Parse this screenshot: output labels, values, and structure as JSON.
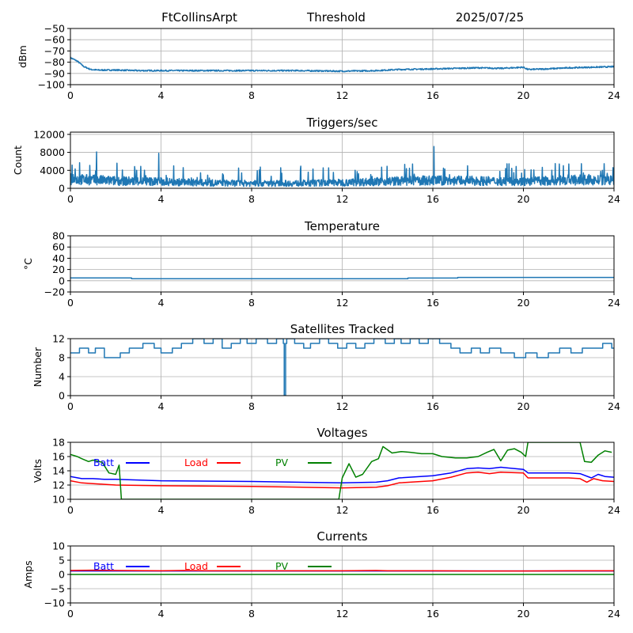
{
  "header": {
    "station": "FtCollinsArpt",
    "plot_name": "Threshold",
    "date": "2025/07/25"
  },
  "colors": {
    "data": "#1f77b4",
    "batt": "#0000ff",
    "load": "#ff0000",
    "pv": "#008000",
    "grid": "#b0b0b0"
  },
  "x_ticks": [
    0,
    4,
    8,
    12,
    16,
    20,
    24
  ],
  "chart_data": [
    {
      "type": "line",
      "title": "",
      "ylabel": "dBm",
      "xlim": [
        0,
        24
      ],
      "ylim": [
        -100,
        -50
      ],
      "yticks": [
        -100,
        -90,
        -80,
        -70,
        -60,
        -50
      ],
      "grid": true,
      "series": [
        {
          "color": "#1f77b4",
          "style": "noisy",
          "x": [
            0,
            0.3,
            0.6,
            0.9,
            1.2,
            2,
            3,
            4,
            6,
            8,
            10,
            12,
            13.5,
            14.5,
            16,
            17,
            18,
            19,
            20,
            20.2,
            21,
            22,
            23,
            24
          ],
          "y": [
            -76,
            -79,
            -84,
            -86.5,
            -87,
            -87,
            -87.5,
            -87.5,
            -87.5,
            -87.5,
            -87.5,
            -88,
            -87.5,
            -86.5,
            -86,
            -85.5,
            -85,
            -85.5,
            -84.5,
            -86.5,
            -86,
            -85,
            -84.5,
            -84
          ],
          "noise": 0.6
        }
      ]
    },
    {
      "type": "line",
      "title": "Triggers/sec",
      "ylabel": "Count",
      "xlim": [
        0,
        24
      ],
      "ylim": [
        0,
        12500
      ],
      "yticks": [
        0,
        4000,
        8000,
        12000
      ],
      "grid": true,
      "series": [
        {
          "color": "#1f77b4",
          "style": "spiky",
          "x": [
            0,
            2,
            4,
            6,
            8,
            10,
            12,
            14,
            16,
            18,
            20,
            22,
            24
          ],
          "y": [
            2200,
            1800,
            1600,
            1300,
            1200,
            1200,
            1400,
            1700,
            1900,
            1800,
            1600,
            2000,
            1900
          ],
          "spikes": [
            {
              "x": 1.15,
              "y": 8100
            },
            {
              "x": 3.9,
              "y": 7800
            },
            {
              "x": 16.05,
              "y": 9300
            },
            {
              "x": 0.4,
              "y": 5700
            },
            {
              "x": 2.05,
              "y": 5600
            },
            {
              "x": 21.4,
              "y": 5500
            },
            {
              "x": 23.95,
              "y": 4600
            }
          ]
        }
      ]
    },
    {
      "type": "line",
      "title": "Temperature",
      "ylabel": "°C",
      "xlim": [
        0,
        24
      ],
      "ylim": [
        -20,
        80
      ],
      "yticks": [
        -20,
        0,
        20,
        40,
        60,
        80
      ],
      "grid": true,
      "series": [
        {
          "color": "#1f77b4",
          "style": "step",
          "x": [
            0,
            2.7,
            2.7,
            14.9,
            14.9,
            17.1,
            17.1,
            24
          ],
          "y": [
            5,
            5,
            3.6,
            3.6,
            4.8,
            4.8,
            5.8,
            5.8
          ]
        }
      ]
    },
    {
      "type": "line",
      "title": "Satellites Tracked",
      "ylabel": "Number",
      "xlim": [
        0,
        24
      ],
      "ylim": [
        0,
        12
      ],
      "yticks": [
        0,
        4,
        8,
        12
      ],
      "grid": true,
      "series": [
        {
          "color": "#1f77b4",
          "style": "step",
          "x": [
            0,
            0.4,
            0.8,
            1.1,
            1.5,
            2.2,
            2.6,
            3.2,
            3.7,
            4.0,
            4.5,
            4.9,
            5.4,
            5.9,
            6.3,
            6.7,
            7.1,
            7.5,
            7.8,
            8.2,
            8.7,
            9.1,
            9.4,
            9.44,
            9.5,
            9.55,
            9.9,
            10.3,
            10.6,
            11.0,
            11.4,
            11.8,
            12.2,
            12.6,
            13.0,
            13.4,
            13.9,
            14.3,
            14.6,
            15.0,
            15.4,
            15.8,
            16.3,
            16.8,
            17.2,
            17.7,
            18.1,
            18.5,
            19.0,
            19.6,
            20.1,
            20.6,
            21.1,
            21.6,
            22.1,
            22.6,
            23.1,
            23.5,
            23.9,
            24
          ],
          "y": [
            9,
            10,
            9,
            10,
            8,
            9,
            10,
            11,
            10,
            9,
            10,
            11,
            12,
            11,
            12,
            10,
            11,
            12,
            11,
            12,
            11,
            12,
            11,
            0,
            11,
            12,
            11,
            10,
            11,
            12,
            11,
            10,
            11,
            10,
            11,
            12,
            11,
            12,
            11,
            12,
            11,
            12,
            11,
            10,
            9,
            10,
            9,
            10,
            9,
            8,
            9,
            8,
            9,
            10,
            9,
            10,
            10,
            11,
            10,
            10
          ]
        }
      ]
    },
    {
      "type": "line",
      "title": "Voltages",
      "ylabel": "Volts",
      "xlim": [
        0,
        24
      ],
      "ylim": [
        10,
        18
      ],
      "yticks": [
        10,
        12,
        14,
        16,
        18
      ],
      "grid": true,
      "legend": "top-left",
      "series": [
        {
          "name": "Batt",
          "color": "#0000ff",
          "style": "line",
          "x": [
            0,
            0.5,
            1,
            1.5,
            2,
            4,
            8,
            12,
            13.5,
            14,
            14.5,
            16,
            16.8,
            17.5,
            18,
            18.5,
            19,
            20,
            20.2,
            22,
            22.5,
            23,
            23.3,
            23.6,
            24
          ],
          "y": [
            13.2,
            12.9,
            12.9,
            12.8,
            12.8,
            12.6,
            12.5,
            12.3,
            12.4,
            12.6,
            13.0,
            13.3,
            13.7,
            14.3,
            14.4,
            14.3,
            14.5,
            14.2,
            13.7,
            13.7,
            13.6,
            13.0,
            13.5,
            13.2,
            13.1
          ]
        },
        {
          "name": "Load",
          "color": "#ff0000",
          "style": "line",
          "x": [
            0,
            0.5,
            1,
            1.5,
            2,
            4,
            8,
            12,
            13.5,
            14,
            14.5,
            16,
            16.8,
            17.5,
            18,
            18.5,
            19,
            20,
            20.2,
            22,
            22.5,
            22.8,
            23.1,
            23.5,
            24
          ],
          "y": [
            12.6,
            12.3,
            12.2,
            12.1,
            12.0,
            11.9,
            11.8,
            11.6,
            11.7,
            11.9,
            12.3,
            12.6,
            13.1,
            13.7,
            13.8,
            13.6,
            13.8,
            13.7,
            13.0,
            13.0,
            12.9,
            12.4,
            12.9,
            12.6,
            12.5
          ]
        },
        {
          "name": "PV",
          "color": "#008000",
          "style": "line",
          "x": [
            0,
            0.3,
            0.5,
            0.8,
            1.0,
            1.4,
            1.7,
            2.0,
            2.15,
            2.25,
            11.85,
            12.0,
            12.3,
            12.6,
            12.9,
            13.3,
            13.6,
            13.8,
            14.2,
            14.6,
            15.0,
            15.5,
            16.0,
            16.4,
            17.0,
            17.5,
            18.0,
            18.4,
            18.7,
            19.0,
            19.3,
            19.6,
            19.9,
            20.1,
            20.2,
            22.5,
            22.7,
            23.0,
            23.3,
            23.6,
            23.9
          ],
          "y": [
            16.3,
            16.0,
            15.7,
            15.3,
            15.5,
            15.2,
            13.7,
            13.5,
            14.8,
            10.0,
            10.0,
            13.0,
            15.0,
            13.1,
            13.5,
            15.3,
            15.7,
            17.4,
            16.5,
            16.7,
            16.6,
            16.4,
            16.4,
            16.0,
            15.8,
            15.8,
            16.0,
            16.6,
            17.0,
            15.4,
            16.9,
            17.1,
            16.6,
            16.0,
            18.0,
            18.0,
            15.3,
            15.2,
            16.2,
            16.8,
            16.6
          ]
        }
      ]
    },
    {
      "type": "line",
      "title": "Currents",
      "ylabel": "Amps",
      "xlim": [
        0,
        24
      ],
      "ylim": [
        -10,
        10
      ],
      "yticks": [
        -10,
        -5,
        0,
        5,
        10
      ],
      "grid": true,
      "legend": "top-left",
      "series": [
        {
          "name": "Batt",
          "color": "#0000ff",
          "style": "line",
          "x": [
            0,
            24
          ],
          "y": [
            1.2,
            1.2
          ]
        },
        {
          "name": "Load",
          "color": "#ff0000",
          "style": "line",
          "x": [
            0,
            1,
            2,
            4,
            5,
            6,
            8,
            10,
            12,
            13.5,
            14,
            16,
            18,
            20,
            22,
            24
          ],
          "y": [
            1.4,
            1.5,
            1.4,
            1.3,
            1.4,
            1.3,
            1.3,
            1.3,
            1.3,
            1.4,
            1.3,
            1.3,
            1.2,
            1.2,
            1.3,
            1.3
          ]
        },
        {
          "name": "PV",
          "color": "#008000",
          "style": "line",
          "x": [
            0,
            24
          ],
          "y": [
            0.0,
            0.0
          ]
        }
      ]
    }
  ]
}
